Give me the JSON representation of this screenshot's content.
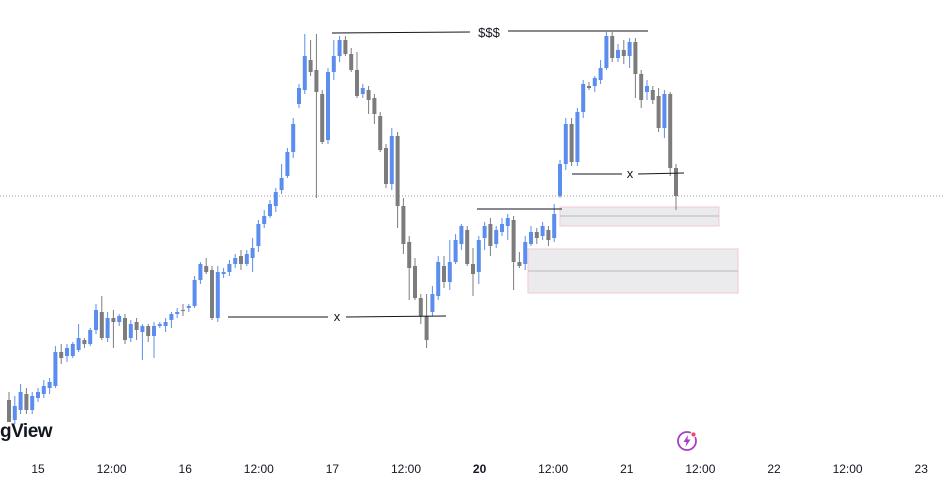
{
  "brand": {
    "text": "gView"
  },
  "colors": {
    "up": "#5b8def",
    "down": "#7c7c7c",
    "zone_fill": "#e8e8ea",
    "zone_border": "#f0c8d0",
    "ref_line": "#9e9e9e",
    "accent": "#a63fc8"
  },
  "icons": {
    "brand_badge": "lightning-bolt-icon"
  },
  "chart_data": {
    "type": "candlestick",
    "x_ticks": [
      {
        "label": "15",
        "day": 15.0,
        "bold": false
      },
      {
        "label": "12:00",
        "day": 15.5,
        "bold": false
      },
      {
        "label": "16",
        "day": 16.0,
        "bold": false
      },
      {
        "label": "12:00",
        "day": 16.5,
        "bold": false
      },
      {
        "label": "17",
        "day": 17.0,
        "bold": false
      },
      {
        "label": "12:00",
        "day": 17.5,
        "bold": false
      },
      {
        "label": "20",
        "day": 18.0,
        "bold": true
      },
      {
        "label": "12:00",
        "day": 18.5,
        "bold": false
      },
      {
        "label": "21",
        "day": 19.0,
        "bold": false
      },
      {
        "label": "12:00",
        "day": 19.5,
        "bold": false
      },
      {
        "label": "22",
        "day": 20.0,
        "bold": false
      },
      {
        "label": "12:00",
        "day": 20.5,
        "bold": false
      },
      {
        "label": "23",
        "day": 21.0,
        "bold": false
      }
    ],
    "candles": [
      [
        400,
        422,
        392,
        420
      ],
      [
        420,
        406,
        396,
        424
      ],
      [
        410,
        392,
        384,
        414
      ],
      [
        394,
        410,
        388,
        414
      ],
      [
        410,
        396,
        392,
        414
      ],
      [
        398,
        392,
        388,
        402
      ],
      [
        394,
        386,
        380,
        398
      ],
      [
        388,
        382,
        378,
        394
      ],
      [
        386,
        352,
        346,
        388
      ],
      [
        352,
        358,
        344,
        364
      ],
      [
        356,
        348,
        344,
        362
      ],
      [
        356,
        344,
        342,
        358
      ],
      [
        350,
        338,
        324,
        352
      ],
      [
        340,
        344,
        338,
        348
      ],
      [
        344,
        330,
        328,
        346
      ],
      [
        330,
        310,
        304,
        334
      ],
      [
        312,
        338,
        296,
        340
      ],
      [
        338,
        318,
        312,
        342
      ],
      [
        318,
        322,
        310,
        348
      ],
      [
        322,
        316,
        314,
        326
      ],
      [
        318,
        340,
        314,
        344
      ],
      [
        338,
        324,
        320,
        342
      ],
      [
        322,
        330,
        318,
        340
      ],
      [
        332,
        326,
        324,
        360
      ],
      [
        326,
        336,
        324,
        342
      ],
      [
        336,
        326,
        322,
        358
      ],
      [
        326,
        324,
        322,
        328
      ],
      [
        326,
        322,
        318,
        332
      ],
      [
        320,
        314,
        312,
        328
      ],
      [
        314,
        312,
        308,
        318
      ],
      [
        310,
        310,
        304,
        316
      ],
      [
        308,
        306,
        304,
        312
      ],
      [
        306,
        280,
        276,
        308
      ],
      [
        280,
        264,
        262,
        284
      ],
      [
        266,
        272,
        258,
        274
      ],
      [
        270,
        318,
        266,
        320
      ],
      [
        318,
        272,
        266,
        322
      ],
      [
        274,
        272,
        268,
        278
      ],
      [
        272,
        264,
        260,
        276
      ],
      [
        264,
        258,
        254,
        268
      ],
      [
        256,
        264,
        250,
        270
      ],
      [
        264,
        254,
        250,
        266
      ],
      [
        258,
        248,
        238,
        272
      ],
      [
        246,
        224,
        220,
        252
      ],
      [
        224,
        216,
        210,
        228
      ],
      [
        216,
        204,
        200,
        218
      ],
      [
        206,
        192,
        188,
        212
      ],
      [
        190,
        178,
        164,
        194
      ],
      [
        176,
        152,
        148,
        178
      ],
      [
        152,
        124,
        118,
        158
      ],
      [
        104,
        88,
        84,
        108
      ],
      [
        90,
        56,
        34,
        94
      ],
      [
        60,
        72,
        40,
        76
      ],
      [
        70,
        92,
        34,
        198
      ],
      [
        94,
        142,
        90,
        144
      ],
      [
        140,
        72,
        68,
        144
      ],
      [
        72,
        56,
        40,
        80
      ],
      [
        56,
        40,
        36,
        62
      ],
      [
        40,
        54,
        36,
        56
      ],
      [
        54,
        70,
        48,
        72
      ],
      [
        70,
        96,
        52,
        98
      ],
      [
        94,
        88,
        84,
        98
      ],
      [
        90,
        100,
        86,
        114
      ],
      [
        98,
        114,
        94,
        124
      ],
      [
        116,
        150,
        112,
        152
      ],
      [
        148,
        184,
        144,
        188
      ],
      [
        184,
        136,
        128,
        190
      ],
      [
        136,
        206,
        132,
        228
      ],
      [
        206,
        244,
        198,
        254
      ],
      [
        242,
        268,
        236,
        300
      ],
      [
        266,
        298,
        258,
        300
      ],
      [
        298,
        316,
        294,
        324
      ],
      [
        316,
        340,
        294,
        348
      ],
      [
        312,
        294,
        286,
        316
      ],
      [
        296,
        262,
        256,
        300
      ],
      [
        266,
        282,
        256,
        288
      ],
      [
        282,
        262,
        240,
        290
      ],
      [
        262,
        240,
        234,
        264
      ],
      [
        244,
        226,
        224,
        250
      ],
      [
        230,
        264,
        226,
        266
      ],
      [
        264,
        274,
        248,
        296
      ],
      [
        272,
        240,
        236,
        284
      ],
      [
        238,
        226,
        222,
        250
      ],
      [
        224,
        246,
        218,
        256
      ],
      [
        244,
        230,
        226,
        248
      ],
      [
        232,
        224,
        218,
        236
      ],
      [
        226,
        218,
        214,
        240
      ],
      [
        220,
        262,
        216,
        290
      ],
      [
        262,
        266,
        252,
        268
      ],
      [
        264,
        242,
        236,
        270
      ],
      [
        244,
        232,
        226,
        246
      ],
      [
        232,
        238,
        228,
        244
      ],
      [
        236,
        226,
        222,
        240
      ],
      [
        230,
        240,
        226,
        246
      ],
      [
        238,
        214,
        204,
        242
      ],
      [
        196,
        164,
        160,
        198
      ],
      [
        164,
        124,
        118,
        170
      ],
      [
        124,
        162,
        118,
        166
      ],
      [
        162,
        112,
        108,
        166
      ],
      [
        112,
        84,
        80,
        118
      ],
      [
        86,
        88,
        82,
        90
      ],
      [
        86,
        78,
        76,
        92
      ],
      [
        80,
        68,
        60,
        84
      ],
      [
        68,
        36,
        32,
        70
      ],
      [
        36,
        58,
        32,
        62
      ],
      [
        58,
        50,
        44,
        62
      ],
      [
        50,
        56,
        40,
        64
      ],
      [
        56,
        42,
        38,
        68
      ],
      [
        42,
        74,
        38,
        98
      ],
      [
        74,
        100,
        70,
        108
      ],
      [
        92,
        86,
        80,
        100
      ],
      [
        90,
        100,
        86,
        104
      ],
      [
        96,
        128,
        88,
        132
      ],
      [
        128,
        94,
        90,
        138
      ],
      [
        94,
        168,
        92,
        176
      ],
      [
        168,
        196,
        164,
        210
      ]
    ],
    "annotations": {
      "top_label": "$$$",
      "x_label_left": "x",
      "x_label_right": "x"
    }
  }
}
